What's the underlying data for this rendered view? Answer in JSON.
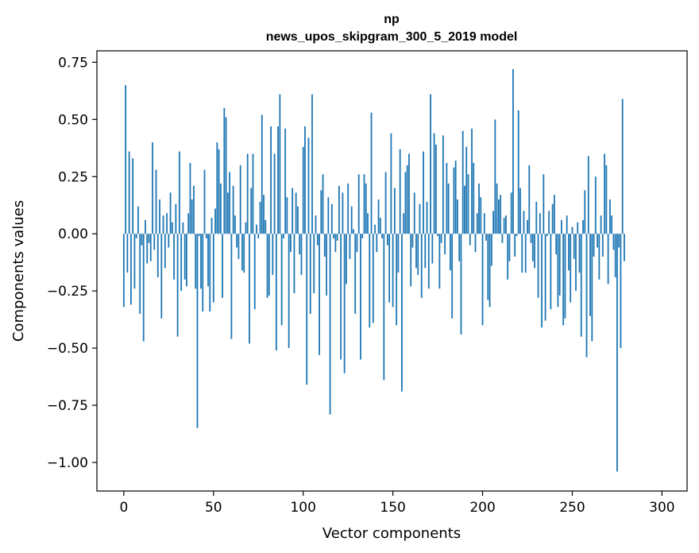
{
  "chart_data": {
    "type": "bar",
    "title": "np",
    "subtitle": "news_upos_skipgram_300_5_2019 model",
    "xlabel": "Vector components",
    "ylabel": "Components values",
    "xlim": [
      -15,
      314
    ],
    "ylim": [
      -1.125,
      0.8
    ],
    "xticks": [
      0,
      50,
      100,
      150,
      200,
      250,
      300
    ],
    "xtick_labels": [
      "0",
      "50",
      "100",
      "150",
      "200",
      "250",
      "300"
    ],
    "yticks": [
      0.75,
      0.5,
      0.25,
      0.0,
      -0.25,
      -0.5,
      -0.75,
      -1.0
    ],
    "ytick_labels": [
      "0.75",
      "0.50",
      "0.25",
      "0.00",
      "−0.25",
      "−0.50",
      "−0.75",
      "−1.00"
    ],
    "bar_color": "#1f77b4",
    "grid": false,
    "values": [
      -0.32,
      0.65,
      -0.17,
      0.36,
      -0.31,
      0.33,
      -0.24,
      -0.02,
      0.12,
      -0.35,
      -0.05,
      -0.47,
      0.06,
      -0.13,
      -0.04,
      -0.12,
      0.4,
      -0.07,
      0.28,
      -0.19,
      0.15,
      -0.37,
      0.08,
      -0.15,
      0.09,
      -0.06,
      0.18,
      0.05,
      -0.2,
      0.13,
      -0.45,
      0.36,
      -0.25,
      0.05,
      -0.2,
      -0.23,
      0.09,
      0.31,
      0.15,
      0.21,
      -0.24,
      -0.85,
      -0.01,
      -0.24,
      -0.34,
      0.28,
      -0.02,
      -0.23,
      -0.34,
      0.07,
      -0.3,
      0.11,
      0.4,
      0.37,
      0.22,
      -0.28,
      0.55,
      0.51,
      0.18,
      0.27,
      -0.46,
      0.21,
      0.08,
      -0.06,
      -0.11,
      0.3,
      -0.16,
      -0.17,
      0.05,
      0.35,
      -0.48,
      0.2,
      0.35,
      -0.33,
      0.04,
      -0.02,
      0.14,
      0.52,
      0.17,
      0.06,
      -0.28,
      -0.27,
      0.47,
      -0.18,
      0.35,
      -0.51,
      0.47,
      0.61,
      -0.4,
      -0.02,
      0.46,
      0.16,
      -0.5,
      -0.08,
      0.2,
      -0.26,
      0.18,
      0.12,
      -0.09,
      -0.18,
      0.38,
      0.47,
      -0.66,
      0.42,
      -0.35,
      0.61,
      -0.26,
      0.08,
      -0.05,
      -0.53,
      0.19,
      0.26,
      -0.1,
      -0.27,
      0.16,
      -0.79,
      0.13,
      -0.02,
      -0.08,
      -0.03,
      0.21,
      -0.55,
      0.18,
      -0.61,
      -0.22,
      0.22,
      -0.11,
      0.12,
      0.02,
      -0.35,
      -0.08,
      0.26,
      -0.55,
      -0.02,
      0.26,
      0.22,
      0.09,
      -0.41,
      0.53,
      -0.39,
      0.04,
      -0.08,
      0.15,
      0.07,
      -0.02,
      -0.64,
      0.27,
      -0.05,
      -0.3,
      0.44,
      -0.32,
      0.2,
      -0.4,
      -0.17,
      0.37,
      -0.69,
      0.09,
      0.27,
      0.3,
      0.35,
      -0.23,
      -0.06,
      0.18,
      -0.15,
      -0.18,
      0.13,
      -0.28,
      0.36,
      -0.15,
      0.14,
      -0.24,
      0.61,
      -0.13,
      0.44,
      0.39,
      -0.01,
      -0.24,
      -0.04,
      0.43,
      -0.09,
      0.31,
      0.22,
      -0.16,
      -0.37,
      0.29,
      0.32,
      0.15,
      -0.12,
      -0.44,
      0.45,
      0.21,
      0.38,
      0.26,
      -0.05,
      0.46,
      0.31,
      -0.08,
      0.09,
      0.22,
      0.16,
      -0.4,
      0.09,
      -0.03,
      -0.29,
      -0.32,
      -0.14,
      0.1,
      0.5,
      0.22,
      0.15,
      0.17,
      -0.04,
      0.07,
      0.08,
      -0.2,
      -0.12,
      0.18,
      0.72,
      -0.1,
      -0.01,
      0.54,
      0.2,
      -0.17,
      0.1,
      -0.17,
      0.06,
      0.3,
      -0.04,
      -0.12,
      -0.15,
      0.14,
      -0.28,
      0.09,
      -0.41,
      0.26,
      -0.38,
      -0.01,
      0.1,
      -0.33,
      0.13,
      0.17,
      -0.09,
      -0.32,
      -0.27,
      0.06,
      -0.4,
      -0.37,
      0.08,
      -0.16,
      -0.3,
      0.03,
      -0.11,
      -0.25,
      0.05,
      -0.17,
      -0.45,
      0.06,
      0.19,
      -0.54,
      0.34,
      -0.36,
      -0.47,
      -0.1,
      0.25,
      -0.06,
      -0.2,
      0.08,
      -0.1,
      0.35,
      0.3,
      -0.22,
      0.15,
      0.08,
      -0.07,
      -0.19,
      -1.04,
      -0.06,
      -0.5,
      0.59,
      -0.12
    ]
  }
}
